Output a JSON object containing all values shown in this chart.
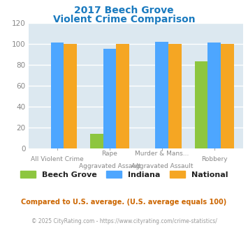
{
  "title_line1": "2017 Beech Grove",
  "title_line2": "Violent Crime Comparison",
  "title_color": "#1a7abf",
  "group_labels_top": [
    "",
    "Rape",
    "Murder & Mans...",
    ""
  ],
  "group_labels_bottom": [
    "All Violent Crime",
    "Aggravated Assault",
    "Aggravated Assault",
    "Robbery"
  ],
  "beech_grove": [
    0,
    14,
    0,
    83
  ],
  "indiana": [
    101,
    95,
    102,
    101
  ],
  "national": [
    100,
    100,
    100,
    100
  ],
  "colors": {
    "beech_grove": "#8dc63f",
    "indiana": "#4da6ff",
    "national": "#f5a623"
  },
  "ylim": [
    0,
    120
  ],
  "yticks": [
    0,
    20,
    40,
    60,
    80,
    100,
    120
  ],
  "background_color": "#dce8f0",
  "grid_color": "#ffffff",
  "footnote1": "Compared to U.S. average. (U.S. average equals 100)",
  "footnote2": "© 2025 CityRating.com - https://www.cityrating.com/crime-statistics/",
  "footnote1_color": "#cc6600",
  "footnote2_color": "#999999",
  "legend_labels": [
    "Beech Grove",
    "Indiana",
    "National"
  ]
}
